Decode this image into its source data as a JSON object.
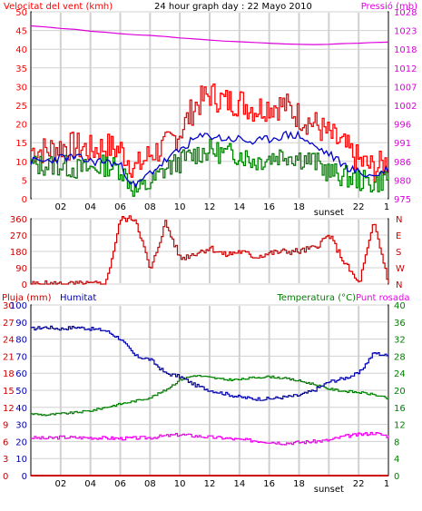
{
  "colors": {
    "wind": "#ff0000",
    "wind_avg": "#0000cc",
    "wind_dir": "#cc0000",
    "pressure": "#dd00dd",
    "gust_line": "#008000",
    "rain": "#cc0000",
    "humidity": "#0000aa",
    "temperature": "#008000",
    "dewpoint": "#ee00ee",
    "grid": "#d0d0d0",
    "axis_text": "#000000"
  },
  "chart_data": [
    {
      "type": "line",
      "title": "24 hour graph day : 22 Mayo 2010",
      "left_axis_label": "Velocitat del vent (kmh)",
      "right_axis_label": "Pressió (mb)",
      "left_ticks": [
        "0",
        "5",
        "10",
        "15",
        "20",
        "25",
        "30",
        "35",
        "40",
        "45",
        "50"
      ],
      "right_ticks": [
        "975",
        "980",
        "986",
        "991",
        "996",
        "1002",
        "1007",
        "1012",
        "1018",
        "1023",
        "1028"
      ],
      "x_ticks": [
        "02",
        "04",
        "06",
        "08",
        "10",
        "12",
        "14",
        "16",
        "18",
        "sunset",
        "22",
        "1"
      ],
      "ylim_left": [
        0,
        50
      ],
      "ylim_right": [
        975,
        1028
      ],
      "x": [
        0,
        1,
        2,
        3,
        4,
        5,
        6,
        7,
        8,
        9,
        10,
        11,
        12,
        13,
        14,
        15,
        16,
        17,
        18,
        19,
        20,
        21,
        22,
        23,
        24
      ],
      "series": [
        {
          "key": "gust",
          "values": [
            13,
            13,
            14,
            14,
            13,
            14,
            13,
            8,
            12,
            14,
            18,
            25,
            28,
            26,
            26,
            24,
            25,
            25,
            22,
            20,
            17,
            14,
            10,
            8,
            10
          ]
        },
        {
          "key": "average",
          "values": [
            10,
            10,
            11,
            11,
            10,
            10,
            9,
            3,
            7,
            10,
            13,
            16,
            17,
            16,
            16,
            15,
            16,
            17,
            17,
            14,
            12,
            9,
            7,
            6,
            8
          ]
        },
        {
          "key": "green",
          "values": [
            9,
            9,
            9,
            8,
            8,
            9,
            8,
            2,
            4,
            8,
            10,
            12,
            13,
            12,
            12,
            10,
            11,
            12,
            11,
            10,
            7,
            6,
            5,
            4,
            6
          ]
        },
        {
          "key": "pressure",
          "values": [
            1024,
            1023.7,
            1023.3,
            1023,
            1022.5,
            1022.2,
            1021.8,
            1021.5,
            1021.3,
            1021,
            1020.6,
            1020.3,
            1020,
            1019.7,
            1019.5,
            1019.3,
            1019.1,
            1018.9,
            1018.8,
            1018.7,
            1018.8,
            1019,
            1019.1,
            1019.3,
            1019.4
          ]
        }
      ]
    },
    {
      "type": "line",
      "left_ticks": [
        "0",
        "90",
        "180",
        "270",
        "360"
      ],
      "right_labels": [
        "N",
        "W",
        "S",
        "E",
        "N"
      ],
      "ylim": [
        0,
        360
      ],
      "x": [
        0,
        1,
        2,
        3,
        4,
        5,
        6,
        7,
        8,
        9,
        10,
        11,
        12,
        13,
        14,
        15,
        16,
        17,
        18,
        19,
        20,
        21,
        22,
        23,
        24
      ],
      "series": [
        {
          "key": "direction",
          "values": [
            0,
            0,
            0,
            0,
            0,
            0,
            360,
            360,
            70,
            340,
            140,
            170,
            200,
            160,
            180,
            150,
            170,
            180,
            180,
            200,
            270,
            120,
            0,
            340,
            0
          ]
        }
      ]
    },
    {
      "type": "line",
      "left_axis_label": "Pluja (mm)",
      "left_axis_label2": "Humitat",
      "right_axis_label": "Temperatura (°C)",
      "right_axis_label2": "Punt rosada",
      "left_ticks_rain": [
        "0",
        "3",
        "6",
        "9",
        "12",
        "15",
        "18",
        "21",
        "24",
        "27",
        "30"
      ],
      "left_ticks_humidity": [
        "0",
        "10",
        "20",
        "30",
        "40",
        "50",
        "60",
        "70",
        "80",
        "90",
        "100"
      ],
      "right_ticks": [
        "0",
        "4",
        "8",
        "12",
        "16",
        "20",
        "24",
        "28",
        "32",
        "36",
        "40"
      ],
      "x_ticks": [
        "02",
        "04",
        "06",
        "08",
        "10",
        "12",
        "14",
        "16",
        "18",
        "sunset",
        "22",
        "1"
      ],
      "ylim_humidity": [
        0,
        100
      ],
      "ylim_temperature": [
        0,
        40
      ],
      "x": [
        0,
        1,
        2,
        3,
        4,
        5,
        6,
        7,
        8,
        9,
        10,
        11,
        12,
        13,
        14,
        15,
        16,
        17,
        18,
        19,
        20,
        21,
        22,
        23,
        24
      ],
      "series": [
        {
          "key": "rain",
          "values": [
            0,
            0,
            0,
            0,
            0,
            0,
            0,
            0,
            0,
            0,
            0,
            0,
            0,
            0,
            0,
            0,
            0,
            0,
            0,
            0,
            0,
            0,
            0,
            0,
            0
          ]
        },
        {
          "key": "humidity",
          "values": [
            86,
            87,
            86,
            87,
            86,
            85,
            80,
            70,
            68,
            60,
            58,
            53,
            50,
            48,
            46,
            45,
            45,
            46,
            47,
            50,
            55,
            57,
            60,
            72,
            70
          ]
        },
        {
          "key": "temperature",
          "values": [
            14.5,
            14.2,
            14.5,
            14.8,
            15.2,
            16,
            16.8,
            17.5,
            18.3,
            20,
            22.5,
            23.5,
            23,
            22.5,
            22.5,
            23,
            23.2,
            22.8,
            22.2,
            21.4,
            20.3,
            19.8,
            19.5,
            19,
            18
          ]
        },
        {
          "key": "dewpoint",
          "values": [
            8.9,
            8.7,
            9,
            8.9,
            8.9,
            8.8,
            8.7,
            8.8,
            8.9,
            9.3,
            9.6,
            9.3,
            9,
            8.8,
            8.4,
            8.2,
            7.9,
            7.6,
            7.8,
            8,
            8.3,
            9.2,
            9.6,
            10,
            9.2
          ]
        }
      ]
    }
  ]
}
